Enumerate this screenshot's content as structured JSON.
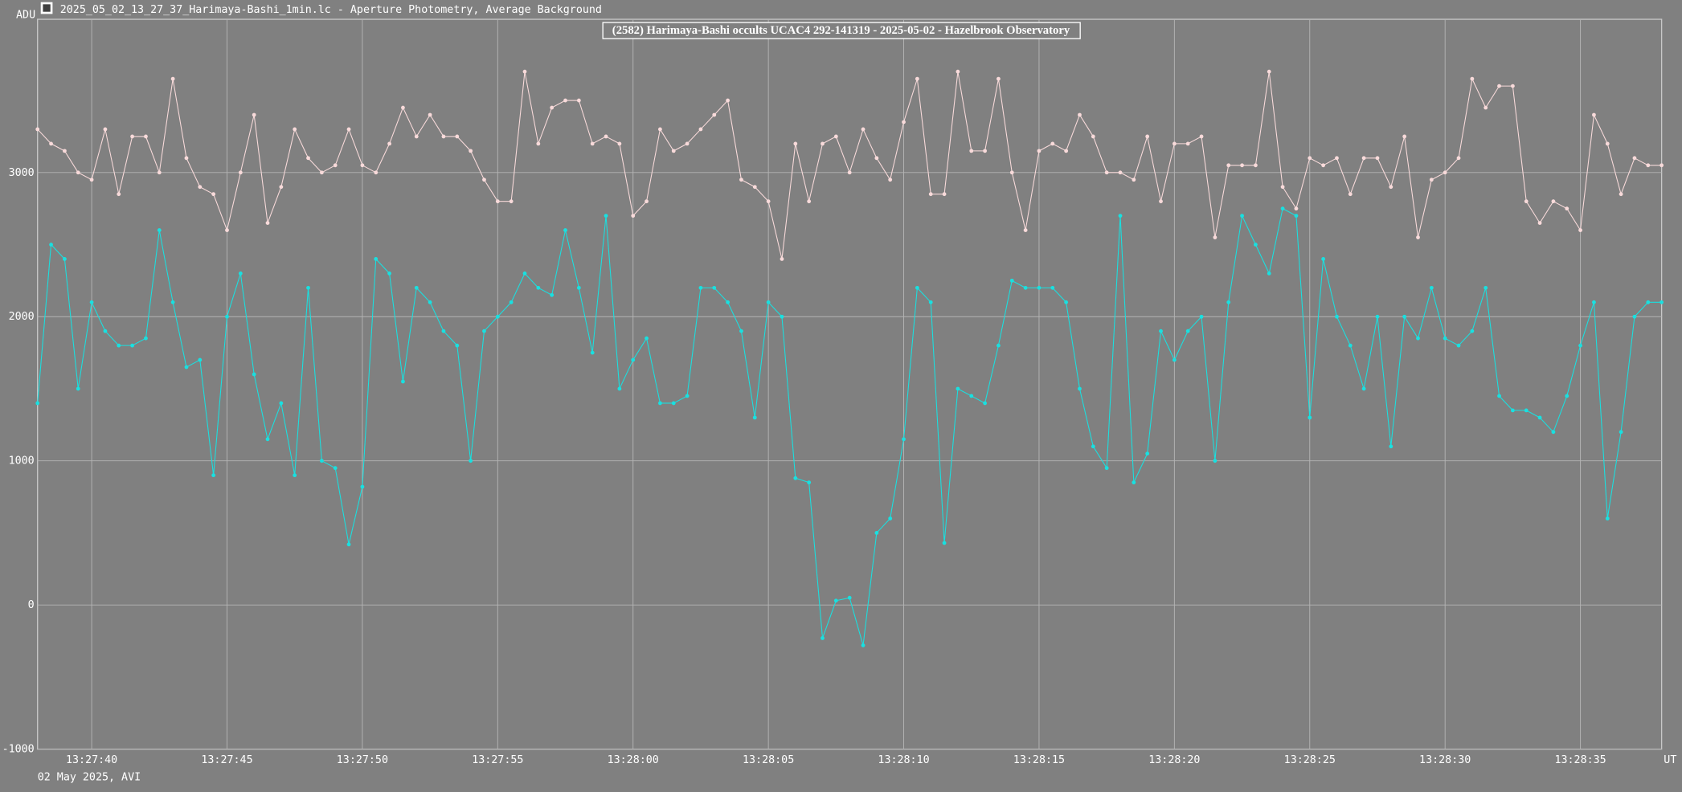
{
  "window_title": "2025_05_02_13_27_37_Harimaya-Bashi_1min.lc - Aperture Photometry, Average Background",
  "footer": "02 May 2025, AVI",
  "chart_data": {
    "type": "line",
    "title": "(2582) Harimaya-Bashi occults UCAC4 292-141319 - 2025-05-02 - Hazelbrook Observatory",
    "ylabel": "ADU",
    "xlabel": "UT",
    "grid": true,
    "xlim": [
      48458,
      48518
    ],
    "ylim": [
      -1000,
      4063
    ],
    "yticks": [
      3000,
      2000,
      1000,
      0,
      -1000
    ],
    "xticks": [
      {
        "value": 48460,
        "label": "13:27:40"
      },
      {
        "value": 48465,
        "label": "13:27:45"
      },
      {
        "value": 48470,
        "label": "13:27:50"
      },
      {
        "value": 48475,
        "label": "13:27:55"
      },
      {
        "value": 48480,
        "label": "13:28:00"
      },
      {
        "value": 48485,
        "label": "13:28:05"
      },
      {
        "value": 48490,
        "label": "13:28:10"
      },
      {
        "value": 48495,
        "label": "13:28:15"
      },
      {
        "value": 48500,
        "label": "13:28:20"
      },
      {
        "value": 48505,
        "label": "13:28:25"
      },
      {
        "value": 48510,
        "label": "13:28:30"
      },
      {
        "value": 48515,
        "label": "13:28:35"
      }
    ],
    "x": [
      48458,
      48458.5,
      48459,
      48459.5,
      48460,
      48460.5,
      48461,
      48461.5,
      48462,
      48462.5,
      48463,
      48463.5,
      48464,
      48464.5,
      48465,
      48465.5,
      48466,
      48466.5,
      48467,
      48467.5,
      48468,
      48468.5,
      48469,
      48469.5,
      48470,
      48470.5,
      48471,
      48471.5,
      48472,
      48472.5,
      48473,
      48473.5,
      48474,
      48474.5,
      48475,
      48475.5,
      48476,
      48476.5,
      48477,
      48477.5,
      48478,
      48478.5,
      48479,
      48479.5,
      48480,
      48480.5,
      48481,
      48481.5,
      48482,
      48482.5,
      48483,
      48483.5,
      48484,
      48484.5,
      48485,
      48485.5,
      48486,
      48486.5,
      48487,
      48487.5,
      48488,
      48488.5,
      48489,
      48489.5,
      48490,
      48490.5,
      48491,
      48491.5,
      48492,
      48492.5,
      48493,
      48493.5,
      48494,
      48494.5,
      48495,
      48495.5,
      48496,
      48496.5,
      48497,
      48497.5,
      48498,
      48498.5,
      48499,
      48499.5,
      48500,
      48500.5,
      48501,
      48501.5,
      48502,
      48502.5,
      48503,
      48503.5,
      48504,
      48504.5,
      48505,
      48505.5,
      48506,
      48506.5,
      48507,
      48507.5,
      48508,
      48508.5,
      48509,
      48509.5,
      48510,
      48510.5,
      48511,
      48511.5,
      48512,
      48512.5,
      48513,
      48513.5,
      48514,
      48514.5,
      48515,
      48515.5,
      48516,
      48516.5,
      48517,
      48517.5,
      48518
    ],
    "series": [
      {
        "color": "#f8dada",
        "values": [
          3300,
          3200,
          3150,
          3000,
          2950,
          3300,
          2850,
          3250,
          3250,
          3000,
          3650,
          3100,
          2900,
          2850,
          2600,
          3000,
          3400,
          2650,
          2900,
          3300,
          3100,
          3000,
          3050,
          3300,
          3050,
          3000,
          3200,
          3450,
          3250,
          3400,
          3250,
          3250,
          3150,
          2950,
          2800,
          2800,
          3700,
          3200,
          3450,
          3500,
          3500,
          3200,
          3250,
          3200,
          2700,
          2800,
          3300,
          3150,
          3200,
          3300,
          3400,
          3500,
          2950,
          2900,
          2800,
          2400,
          3200,
          2800,
          3200,
          3250,
          3000,
          3300,
          3100,
          2950,
          3350,
          3650,
          2850,
          2850,
          3700,
          3150,
          3150,
          3650,
          3000,
          2600,
          3150,
          3200,
          3150,
          3400,
          3250,
          3000,
          3000,
          2950,
          3250,
          2800,
          3200,
          3200,
          3250,
          2550,
          3050,
          3050,
          3050,
          3700,
          2900,
          2750,
          3100,
          3050,
          3100,
          2850,
          3100,
          3100,
          2900,
          3250,
          2550,
          2950,
          3000,
          3100,
          3650,
          3450,
          3600,
          3600,
          2800,
          2650,
          2800,
          2750,
          2600,
          3400,
          3200,
          2850,
          3100,
          3050,
          3050
        ]
      },
      {
        "color": "#19e0e0",
        "values": [
          1400,
          2500,
          2400,
          1500,
          2100,
          1900,
          1800,
          1800,
          1850,
          2600,
          2100,
          1650,
          1700,
          900,
          2000,
          2300,
          1600,
          1150,
          1400,
          900,
          2200,
          1000,
          950,
          420,
          820,
          2400,
          2300,
          1550,
          2200,
          2100,
          1900,
          1800,
          1000,
          1900,
          2000,
          2100,
          2300,
          2200,
          2150,
          2600,
          2200,
          1750,
          2700,
          1500,
          1700,
          1850,
          1400,
          1400,
          1450,
          2200,
          2200,
          2100,
          1900,
          1300,
          2100,
          2000,
          880,
          850,
          -230,
          30,
          50,
          -280,
          500,
          600,
          1150,
          2200,
          2100,
          430,
          1500,
          1450,
          1400,
          1800,
          2250,
          2200,
          2200,
          2200,
          2100,
          1500,
          1100,
          950,
          2700,
          850,
          1050,
          1900,
          1700,
          1900,
          2000,
          1000,
          2100,
          2700,
          2500,
          2300,
          2750,
          2700,
          1300,
          2400,
          2000,
          1800,
          1500,
          2000,
          1100,
          2000,
          1850,
          2200,
          1850,
          1800,
          1900,
          2200,
          1450,
          1350,
          1350,
          1300,
          1200,
          1450,
          1800,
          2100,
          600,
          1200,
          2000,
          2100,
          2100
        ]
      }
    ]
  }
}
